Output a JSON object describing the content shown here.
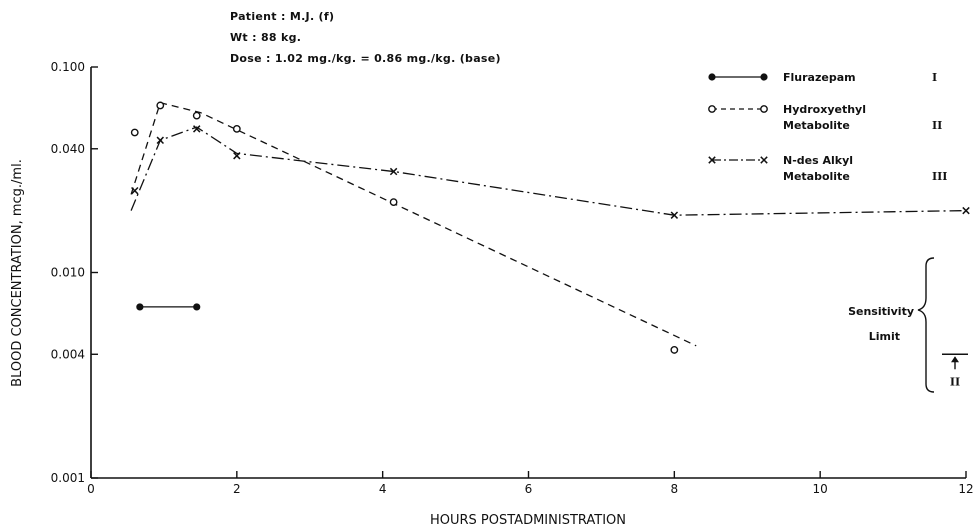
{
  "header": {
    "patient": "Patient : M.J. (f)",
    "weight": "Wt : 88 kg.",
    "dose": "Dose : 1.02 mg./kg. = 0.86 mg./kg. (base)"
  },
  "chart_data": {
    "type": "line",
    "title": "",
    "xlabel": "HOURS POSTADMINISTRATION",
    "ylabel": "BLOOD CONCENTRATION, mcg./ml.",
    "xlim": [
      0,
      12
    ],
    "ylim": [
      0.001,
      0.1
    ],
    "yscale": "log",
    "grid": false,
    "legend_position": "top-right",
    "x_ticks": [
      0,
      2,
      4,
      6,
      8,
      10,
      12
    ],
    "y_ticks": [
      {
        "value": 0.001,
        "label": "0.001"
      },
      {
        "value": 0.004,
        "label": "0.004"
      },
      {
        "value": 0.01,
        "label": "0.010"
      },
      {
        "value": 0.04,
        "label": "0.040"
      },
      {
        "value": 0.1,
        "label": "0.100"
      }
    ],
    "series": [
      {
        "name": "Flurazepam",
        "numeral": "I",
        "marker": "filled-circle",
        "style": "solid",
        "points": [
          [
            0.67,
            0.0068
          ],
          [
            1.45,
            0.0068
          ]
        ]
      },
      {
        "name": "Hydroxyethyl Metabolite",
        "numeral": "II",
        "marker": "open-circle",
        "style": "dashed",
        "points": [
          [
            0.6,
            0.048
          ],
          [
            0.95,
            0.065
          ],
          [
            1.45,
            0.058
          ],
          [
            2.0,
            0.05
          ],
          [
            4.15,
            0.022
          ],
          [
            8.0,
            0.0042
          ]
        ],
        "fit_line": [
          [
            0.55,
            0.024
          ],
          [
            0.95,
            0.067
          ],
          [
            1.5,
            0.06
          ],
          [
            8.3,
            0.0044
          ]
        ]
      },
      {
        "name": "N-des Alkyl Metabolite",
        "numeral": "III",
        "marker": "x",
        "style": "dash-dot",
        "points": [
          [
            0.6,
            0.025
          ],
          [
            0.95,
            0.044
          ],
          [
            1.45,
            0.05
          ],
          [
            2.0,
            0.037
          ],
          [
            4.15,
            0.031
          ],
          [
            8.0,
            0.019
          ],
          [
            12.0,
            0.02
          ]
        ],
        "fit_line": [
          [
            0.55,
            0.02
          ],
          [
            0.95,
            0.044
          ],
          [
            1.45,
            0.051
          ],
          [
            2.0,
            0.038
          ],
          [
            4.15,
            0.031
          ],
          [
            8.0,
            0.019
          ],
          [
            12.0,
            0.02
          ]
        ]
      }
    ],
    "legend": [
      {
        "label_line1": "Flurazepam",
        "label_line2": "",
        "numeral": "I"
      },
      {
        "label_line1": "Hydroxyethyl",
        "label_line2": "Metabolite",
        "numeral": "II"
      },
      {
        "label_line1": "N-des Alkyl",
        "label_line2": "Metabolite",
        "numeral": "III"
      }
    ],
    "annotation": {
      "text_line1": "Sensitivity",
      "text_line2": "Limit",
      "numeral": "II",
      "value": 0.004
    }
  }
}
